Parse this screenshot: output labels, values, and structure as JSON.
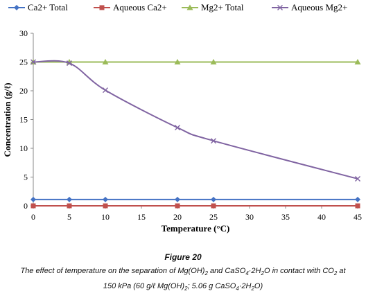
{
  "chart_data": {
    "type": "line",
    "x": [
      0,
      5,
      10,
      20,
      25,
      45
    ],
    "series": [
      {
        "name": "Ca2+ Total",
        "values": [
          1.1,
          1.1,
          1.1,
          1.1,
          1.1,
          1.1
        ],
        "color": "#4472C4",
        "marker": "diamond"
      },
      {
        "name": "Aqueous Ca2+",
        "values": [
          0,
          0,
          0,
          0,
          0,
          0
        ],
        "color": "#C0504D",
        "marker": "square"
      },
      {
        "name": "Mg2+ Total",
        "values": [
          25,
          25,
          25,
          25,
          25,
          25
        ],
        "color": "#9BBB59",
        "marker": "triangle"
      },
      {
        "name": "Aqueous Mg2+",
        "values": [
          25,
          24.8,
          20.1,
          13.6,
          11.3,
          4.7
        ],
        "color": "#8064A2",
        "marker": "x"
      }
    ],
    "xlabel": "Temperature (°C)",
    "ylabel": "Concentration (g/ℓ)",
    "xlim": [
      0,
      45
    ],
    "ylim": [
      0,
      30
    ],
    "xticks": [
      "0",
      "5",
      "10",
      "15",
      "20",
      "25",
      "30",
      "35",
      "40",
      "45"
    ],
    "yticks": [
      "0",
      "5",
      "10",
      "15",
      "20",
      "25",
      "30"
    ],
    "grid": false,
    "legend_position": "top"
  },
  "caption": {
    "label": "Figure 20",
    "line1_a": "The effect of temperature on the separation of Mg(OH)",
    "line1_sub1": "2",
    "line1_b": " and CaSO",
    "line1_sub2": "4",
    "line1_c": "·2H",
    "line1_sub3": "2",
    "line1_d": "O in contact with CO",
    "line1_sub4": "2",
    "line1_e": " at",
    "line2_a": "150 kPa (60 g/ℓ Mg(OH)",
    "line2_sub1": "2",
    "line2_b": "; 5.06 g CaSO",
    "line2_sub2": "4",
    "line2_c": "·2H",
    "line2_sub3": "2",
    "line2_d": "O)"
  }
}
